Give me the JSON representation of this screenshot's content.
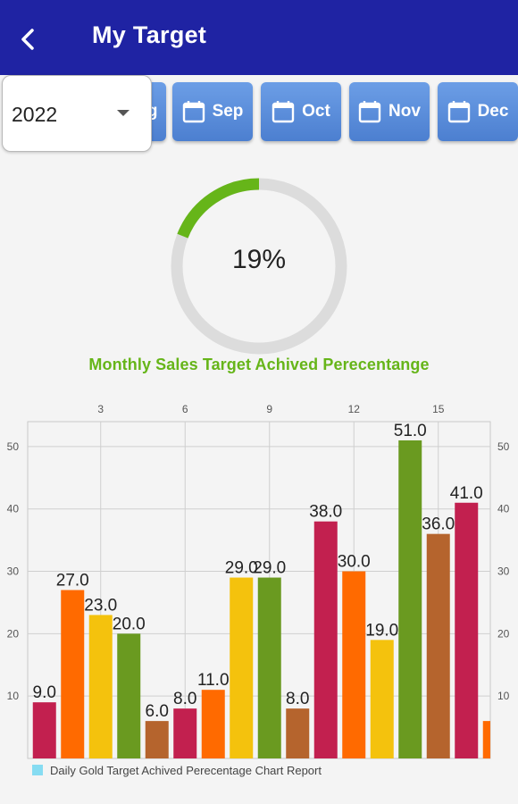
{
  "appbar": {
    "title": "My Target",
    "back_icon": "back-arrow-icon"
  },
  "months": [
    {
      "label": "Aug"
    },
    {
      "label": "Sep"
    },
    {
      "label": "Oct"
    },
    {
      "label": "Nov"
    },
    {
      "label": "Dec"
    }
  ],
  "year_select": {
    "value": "2022"
  },
  "progress": {
    "label": "19%",
    "fraction": 0.19,
    "fill_color": "#66b519",
    "track_color": "#dcdcdc"
  },
  "subtitle": "Monthly Sales Target Achived Perecentange",
  "legend": {
    "label": "Daily Gold Target Achived Perecentage Chart Report",
    "color": "#86dcf2"
  },
  "chart_data": {
    "type": "bar",
    "x": [
      1,
      2,
      3,
      4,
      5,
      6,
      7,
      8,
      9,
      10,
      11,
      12,
      13,
      14,
      15,
      16,
      17
    ],
    "values": [
      9.0,
      27.0,
      23.0,
      20.0,
      6.0,
      8.0,
      11.0,
      29.0,
      29.0,
      8.0,
      38.0,
      30.0,
      19.0,
      51.0,
      36.0,
      41.0,
      6.0
    ],
    "value_labels": [
      "9.0",
      "27.0",
      "23.0",
      "20.0",
      "6.0",
      "8.0",
      "11.0",
      "29.0",
      "29.0",
      "8.0",
      "38.0",
      "30.0",
      "19.0",
      "51.0",
      "36.0",
      "41.0",
      ""
    ],
    "colors": [
      "#c2204f",
      "#ff6a00",
      "#f4c20d",
      "#6a9a20",
      "#b5642d",
      "#c2204f",
      "#ff6a00",
      "#f4c20d",
      "#6a9a20",
      "#b5642d",
      "#c2204f",
      "#ff6a00",
      "#f4c20d",
      "#6a9a20",
      "#b5642d",
      "#c2204f",
      "#ff6a00"
    ],
    "x_ticks": [
      "3",
      "6",
      "9",
      "12",
      "15"
    ],
    "x_tick_positions": [
      3,
      6,
      9,
      12,
      15
    ],
    "y_ticks": [
      "10",
      "20",
      "30",
      "40",
      "50"
    ],
    "y_tick_values": [
      10,
      20,
      30,
      40,
      50
    ],
    "ylim": [
      0,
      54
    ],
    "grid": true,
    "legend_position": "bottom-left"
  }
}
